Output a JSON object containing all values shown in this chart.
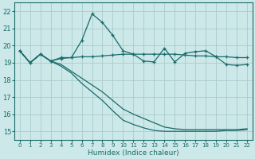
{
  "xlabel": "Humidex (Indice chaleur)",
  "background_color": "#cce8e8",
  "grid_color": "#aacccc",
  "line_color": "#1a6b6b",
  "x_values": [
    0,
    1,
    2,
    3,
    4,
    5,
    6,
    7,
    8,
    9,
    10,
    11,
    12,
    13,
    14,
    15,
    16,
    17,
    18,
    19,
    20,
    21,
    22
  ],
  "series1": [
    19.7,
    19.0,
    19.5,
    19.1,
    19.3,
    19.3,
    20.3,
    21.85,
    21.35,
    20.6,
    19.7,
    19.5,
    19.1,
    19.05,
    19.85,
    19.05,
    19.55,
    19.65,
    19.7,
    19.35,
    18.9,
    18.85,
    18.9
  ],
  "series2": [
    19.7,
    19.0,
    19.5,
    19.1,
    19.25,
    19.3,
    19.35,
    19.35,
    19.4,
    19.45,
    19.5,
    19.5,
    19.5,
    19.5,
    19.5,
    19.5,
    19.45,
    19.4,
    19.4,
    19.35,
    19.35,
    19.3,
    19.3
  ],
  "series3": [
    19.7,
    19.0,
    19.5,
    19.1,
    18.8,
    18.4,
    17.8,
    17.3,
    16.8,
    16.2,
    15.65,
    15.4,
    15.2,
    15.05,
    15.0,
    15.0,
    15.0,
    15.0,
    15.0,
    15.0,
    15.05,
    15.05,
    15.1
  ],
  "series4": [
    19.7,
    19.0,
    19.5,
    19.1,
    18.9,
    18.5,
    18.1,
    17.7,
    17.3,
    16.8,
    16.3,
    16.0,
    15.75,
    15.5,
    15.25,
    15.15,
    15.1,
    15.1,
    15.1,
    15.1,
    15.1,
    15.1,
    15.15
  ],
  "ylim": [
    14.5,
    22.5
  ],
  "yticks": [
    15,
    16,
    17,
    18,
    19,
    20,
    21,
    22
  ]
}
